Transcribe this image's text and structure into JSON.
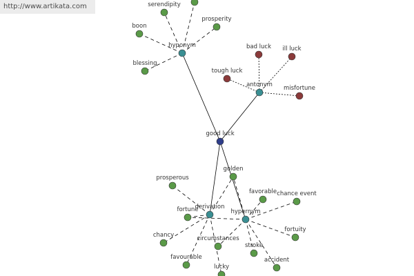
{
  "watermark": "http://www.artikata.com",
  "nodes": [
    {
      "label": "good luck"
    },
    {
      "label": "hyponym"
    },
    {
      "label": "antonym"
    },
    {
      "label": "derivation"
    },
    {
      "label": "hypernym"
    },
    {
      "label": "serendipity"
    },
    {
      "label": "prosperity"
    },
    {
      "label": "boon"
    },
    {
      "label": "blessing"
    },
    {
      "label": "bad luck"
    },
    {
      "label": "ill luck"
    },
    {
      "label": "tough luck"
    },
    {
      "label": "misfortune"
    },
    {
      "label": "prosperous"
    },
    {
      "label": "fortune"
    },
    {
      "label": "chancy"
    },
    {
      "label": "favourable"
    },
    {
      "label": "lucky"
    },
    {
      "label": "golden"
    },
    {
      "label": "circumstances"
    },
    {
      "label": "favorable"
    },
    {
      "label": "chance event"
    },
    {
      "label": "fortuity"
    },
    {
      "label": "stroke"
    },
    {
      "label": "accident"
    }
  ]
}
